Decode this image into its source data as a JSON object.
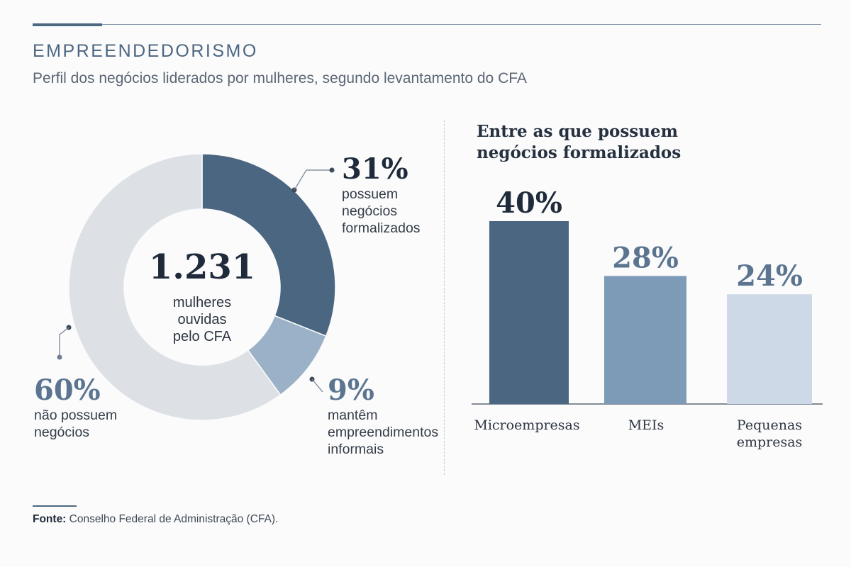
{
  "header": {
    "section_label": "EMPREENDEDORISMO",
    "subtitle": "Perfil dos negócios liderados por mulheres, segundo levantamento do CFA"
  },
  "chart_data": [
    {
      "type": "pie",
      "donut": true,
      "total_label": "1.231",
      "total_caption": [
        "mulheres",
        "ouvidas",
        "pelo CFA"
      ],
      "slices": [
        {
          "value": 31,
          "label": "31%",
          "desc": [
            "possuem",
            "negócios",
            "formalizados"
          ],
          "color": "#4b6680"
        },
        {
          "value": 9,
          "label": "9%",
          "desc": [
            "mantêm",
            "empreendimentos",
            "informais"
          ],
          "color": "#9bb1c7"
        },
        {
          "value": 60,
          "label": "60%",
          "desc": [
            "não possuem",
            "negócios"
          ],
          "color": "#dde1e6"
        }
      ]
    },
    {
      "type": "bar",
      "title": [
        "Entre as que possuem",
        "negócios formalizados"
      ],
      "categories": [
        [
          "Microempresas"
        ],
        [
          "MEIs"
        ],
        [
          "Pequenas",
          "empresas"
        ]
      ],
      "values": [
        40,
        28,
        24
      ],
      "labels": [
        "40%",
        "28%",
        "24%"
      ],
      "colors": [
        "#4b6680",
        "#7d9ab6",
        "#cdd9e6"
      ],
      "ylim": [
        0,
        40
      ]
    }
  ],
  "source": {
    "label": "Fonte:",
    "text": " Conselho Federal de Administração (CFA)."
  },
  "colors": {
    "accent": "#4b6680",
    "pct_dark": "#1f2a3a",
    "pct_muted": "#5b7590"
  }
}
